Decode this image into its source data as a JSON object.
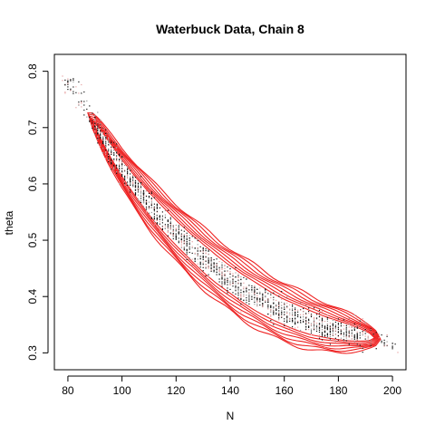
{
  "chart_data": {
    "type": "scatter",
    "title": "Waterbuck Data, Chain 8",
    "xlabel": "N",
    "ylabel": "theta",
    "xlim": [
      75,
      205
    ],
    "ylim": [
      0.27,
      0.83
    ],
    "x_ticks": [
      80,
      100,
      120,
      140,
      160,
      180,
      200
    ],
    "y_ticks": [
      0.3,
      0.4,
      0.5,
      0.6,
      0.7,
      0.8
    ],
    "x_tick_labels": [
      "80",
      "100",
      "120",
      "140",
      "160",
      "180",
      "200"
    ],
    "y_tick_labels": [
      "0.3",
      "0.4",
      "0.5",
      "0.6",
      "0.7",
      "0.8"
    ],
    "grid": false,
    "legend": "none",
    "series": [
      {
        "kind": "points",
        "color": "#000000",
        "trend": {
          "x": [
            80,
            85,
            90,
            95,
            100,
            105,
            110,
            115,
            120,
            125,
            130,
            135,
            140,
            145,
            150,
            155,
            160,
            165,
            170,
            175,
            180,
            185,
            190,
            195,
            200
          ],
          "y": [
            0.78,
            0.745,
            0.705,
            0.665,
            0.628,
            0.595,
            0.565,
            0.538,
            0.513,
            0.49,
            0.468,
            0.448,
            0.43,
            0.413,
            0.398,
            0.384,
            0.372,
            0.362,
            0.353,
            0.346,
            0.34,
            0.335,
            0.33,
            0.325,
            0.318
          ]
        }
      },
      {
        "kind": "density-contours",
        "color": "#ee2222",
        "levels": 7
      }
    ]
  }
}
